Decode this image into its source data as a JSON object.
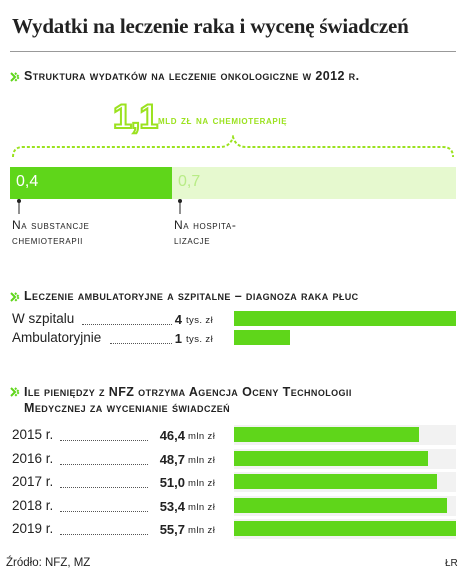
{
  "title": "Wydatki na leczenie raka i wycenę świadczeń",
  "section1": {
    "heading": "Struktura wydatków na leczenie onkologiczne w 2012 r.",
    "total_value": "1,1",
    "total_label": "mld zł na chemioterapię",
    "parts": [
      {
        "value": "0,4",
        "label_lines": [
          "Na substancje",
          "chemioterapii"
        ],
        "color": "#5fd61a"
      },
      {
        "value": "0,7",
        "label_lines": [
          "Na hospita-",
          "lizacje"
        ],
        "color": "#e6f9cf"
      }
    ]
  },
  "section2": {
    "heading": "Leczenie ambulatoryjne a szpitalne – diagnoza raka płuc",
    "rows": [
      {
        "label": "W szpitalu",
        "value": "4",
        "unit": "tys. zł"
      },
      {
        "label": "Ambulatoryjnie",
        "value": "1",
        "unit": "tys. zł"
      }
    ]
  },
  "section3": {
    "heading_lines": [
      "Ile pieniędzy z NFZ otrzyma Agencja Oceny Technologii",
      "Medycznej za wycenianie świadczeń"
    ],
    "rows": [
      {
        "label": "2015 r.",
        "value": "46,4",
        "unit": "mln zł"
      },
      {
        "label": "2016 r.",
        "value": "48,7",
        "unit": "mln zł"
      },
      {
        "label": "2017 r.",
        "value": "51,0",
        "unit": "mln zł"
      },
      {
        "label": "2018 r.",
        "value": "53,4",
        "unit": "mln zł"
      },
      {
        "label": "2019 r.",
        "value": "55,7",
        "unit": "mln zł"
      }
    ]
  },
  "source": "Źródło: NFZ, MZ",
  "logo": "ŁR",
  "chart_data": [
    {
      "type": "bar",
      "title": "Struktura wydatków na leczenie onkologiczne w 2012 r.",
      "categories": [
        "Na substancje chemioterapii",
        "Na hospitalizacje"
      ],
      "values": [
        0.4,
        0.7
      ],
      "total": 1.1,
      "unit": "mld zł"
    },
    {
      "type": "bar",
      "title": "Leczenie ambulatoryjne a szpitalne – diagnoza raka płuc",
      "categories": [
        "W szpitalu",
        "Ambulatoryjnie"
      ],
      "values": [
        4,
        1
      ],
      "unit": "tys. zł"
    },
    {
      "type": "bar",
      "title": "Ile pieniędzy z NFZ otrzyma Agencja Oceny Technologii Medycznej za wycenianie świadczeń",
      "categories": [
        "2015 r.",
        "2016 r.",
        "2017 r.",
        "2018 r.",
        "2019 r."
      ],
      "values": [
        46.4,
        48.7,
        51.0,
        53.4,
        55.7
      ],
      "unit": "mln zł"
    }
  ]
}
